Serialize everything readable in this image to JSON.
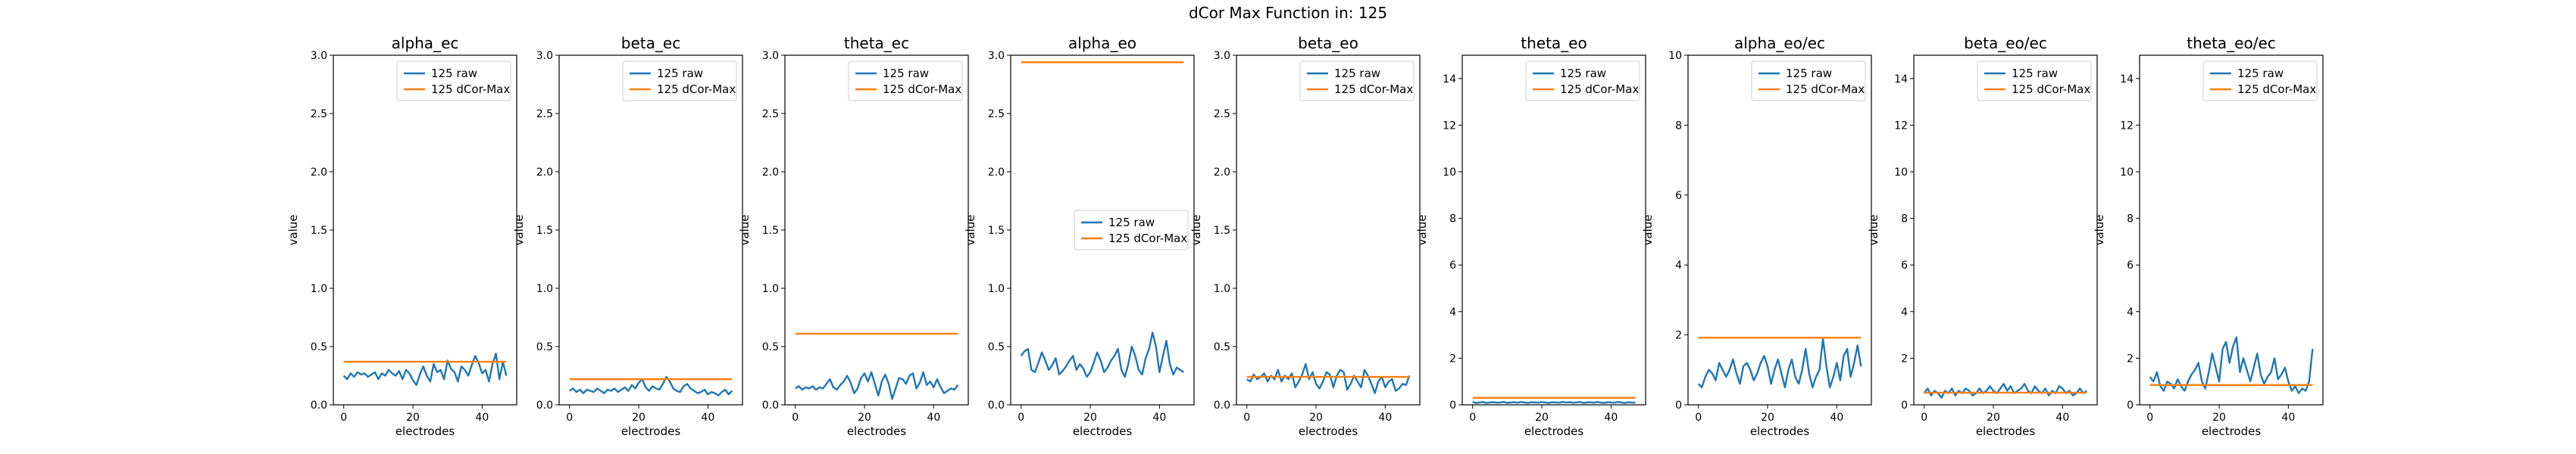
{
  "figure": {
    "suptitle": "dCor Max Function in: 125"
  },
  "chart_data": [
    {
      "type": "line",
      "title": "alpha_ec",
      "xlabel": "electrodes",
      "ylabel": "value",
      "xlim": [
        -3,
        50
      ],
      "ylim": [
        0,
        3.0
      ],
      "xticks": [
        "0",
        "20",
        "40"
      ],
      "xtick_values": [
        0,
        20,
        40
      ],
      "yticks": [
        "0.0",
        "0.5",
        "1.0",
        "1.5",
        "2.0",
        "2.5",
        "3.0"
      ],
      "ytick_values": [
        0,
        0.5,
        1.0,
        1.5,
        2.0,
        2.5,
        3.0
      ],
      "legend": "upper right",
      "series": [
        {
          "name": "125 raw",
          "color": "#1f77b4",
          "x_start": 0,
          "values": [
            0.25,
            0.22,
            0.27,
            0.24,
            0.28,
            0.26,
            0.27,
            0.24,
            0.26,
            0.28,
            0.22,
            0.27,
            0.25,
            0.3,
            0.27,
            0.25,
            0.29,
            0.22,
            0.3,
            0.27,
            0.21,
            0.17,
            0.26,
            0.33,
            0.25,
            0.2,
            0.35,
            0.28,
            0.3,
            0.22,
            0.38,
            0.31,
            0.28,
            0.2,
            0.33,
            0.3,
            0.25,
            0.34,
            0.42,
            0.36,
            0.27,
            0.3,
            0.2,
            0.35,
            0.44,
            0.22,
            0.37,
            0.25
          ]
        },
        {
          "name": "125 dCor-Max",
          "color": "#ff7f0e",
          "x_start": 0,
          "constant": 0.37,
          "length": 48
        }
      ]
    },
    {
      "type": "line",
      "title": "beta_ec",
      "xlabel": "electrodes",
      "ylabel": "value",
      "xlim": [
        -3,
        50
      ],
      "ylim": [
        0,
        3.0
      ],
      "xticks": [
        "0",
        "20",
        "40"
      ],
      "xtick_values": [
        0,
        20,
        40
      ],
      "yticks": [
        "0.0",
        "0.5",
        "1.0",
        "1.5",
        "2.0",
        "2.5",
        "3.0"
      ],
      "ytick_values": [
        0,
        0.5,
        1.0,
        1.5,
        2.0,
        2.5,
        3.0
      ],
      "legend": "upper right",
      "series": [
        {
          "name": "125 raw",
          "color": "#1f77b4",
          "x_start": 0,
          "values": [
            0.12,
            0.14,
            0.11,
            0.13,
            0.1,
            0.13,
            0.12,
            0.11,
            0.14,
            0.12,
            0.1,
            0.13,
            0.12,
            0.14,
            0.11,
            0.13,
            0.15,
            0.12,
            0.17,
            0.14,
            0.19,
            0.22,
            0.15,
            0.12,
            0.16,
            0.14,
            0.13,
            0.18,
            0.24,
            0.2,
            0.14,
            0.12,
            0.11,
            0.16,
            0.18,
            0.14,
            0.12,
            0.1,
            0.11,
            0.13,
            0.09,
            0.11,
            0.1,
            0.08,
            0.11,
            0.13,
            0.09,
            0.12
          ]
        },
        {
          "name": "125 dCor-Max",
          "color": "#ff7f0e",
          "x_start": 0,
          "constant": 0.22,
          "length": 48
        }
      ]
    },
    {
      "type": "line",
      "title": "theta_ec",
      "xlabel": "electrodes",
      "ylabel": "value",
      "xlim": [
        -3,
        50
      ],
      "ylim": [
        0,
        3.0
      ],
      "xticks": [
        "0",
        "20",
        "40"
      ],
      "xtick_values": [
        0,
        20,
        40
      ],
      "yticks": [
        "0.0",
        "0.5",
        "1.0",
        "1.5",
        "2.0",
        "2.5",
        "3.0"
      ],
      "ytick_values": [
        0,
        0.5,
        1.0,
        1.5,
        2.0,
        2.5,
        3.0
      ],
      "legend": "upper right",
      "series": [
        {
          "name": "125 raw",
          "color": "#1f77b4",
          "x_start": 0,
          "values": [
            0.14,
            0.16,
            0.13,
            0.15,
            0.14,
            0.16,
            0.13,
            0.15,
            0.14,
            0.18,
            0.22,
            0.15,
            0.13,
            0.17,
            0.2,
            0.25,
            0.19,
            0.1,
            0.14,
            0.23,
            0.27,
            0.2,
            0.28,
            0.18,
            0.08,
            0.2,
            0.26,
            0.18,
            0.05,
            0.14,
            0.23,
            0.22,
            0.18,
            0.25,
            0.27,
            0.14,
            0.19,
            0.28,
            0.17,
            0.2,
            0.15,
            0.22,
            0.15,
            0.1,
            0.12,
            0.14,
            0.13,
            0.17
          ]
        },
        {
          "name": "125 dCor-Max",
          "color": "#ff7f0e",
          "x_start": 0,
          "constant": 0.61,
          "length": 48
        }
      ]
    },
    {
      "type": "line",
      "title": "alpha_eo",
      "xlabel": "electrodes",
      "ylabel": "value",
      "xlim": [
        -3,
        50
      ],
      "ylim": [
        0,
        3.0
      ],
      "xticks": [
        "0",
        "20",
        "40"
      ],
      "xtick_values": [
        0,
        20,
        40
      ],
      "yticks": [
        "0.0",
        "0.5",
        "1.0",
        "1.5",
        "2.0",
        "2.5",
        "3.0"
      ],
      "ytick_values": [
        0,
        0.5,
        1.0,
        1.5,
        2.0,
        2.5,
        3.0
      ],
      "legend": "center right",
      "series": [
        {
          "name": "125 raw",
          "color": "#1f77b4",
          "x_start": 0,
          "values": [
            0.42,
            0.46,
            0.48,
            0.3,
            0.28,
            0.36,
            0.45,
            0.38,
            0.3,
            0.34,
            0.4,
            0.26,
            0.29,
            0.33,
            0.38,
            0.42,
            0.3,
            0.35,
            0.31,
            0.24,
            0.28,
            0.36,
            0.45,
            0.38,
            0.28,
            0.32,
            0.38,
            0.42,
            0.48,
            0.3,
            0.24,
            0.35,
            0.5,
            0.42,
            0.3,
            0.26,
            0.4,
            0.48,
            0.62,
            0.5,
            0.28,
            0.42,
            0.55,
            0.35,
            0.26,
            0.32,
            0.3,
            0.28
          ]
        },
        {
          "name": "125 dCor-Max",
          "color": "#ff7f0e",
          "x_start": 0,
          "constant": 2.94,
          "length": 48
        }
      ]
    },
    {
      "type": "line",
      "title": "beta_eo",
      "xlabel": "electrodes",
      "ylabel": "value",
      "xlim": [
        -3,
        50
      ],
      "ylim": [
        0,
        3.0
      ],
      "xticks": [
        "0",
        "20",
        "40"
      ],
      "xtick_values": [
        0,
        20,
        40
      ],
      "yticks": [
        "0.0",
        "0.5",
        "1.0",
        "1.5",
        "2.0",
        "2.5",
        "3.0"
      ],
      "ytick_values": [
        0,
        0.5,
        1.0,
        1.5,
        2.0,
        2.5,
        3.0
      ],
      "legend": "upper right",
      "series": [
        {
          "name": "125 raw",
          "color": "#1f77b4",
          "x_start": 0,
          "values": [
            0.22,
            0.2,
            0.26,
            0.22,
            0.24,
            0.27,
            0.2,
            0.25,
            0.22,
            0.3,
            0.2,
            0.25,
            0.22,
            0.27,
            0.15,
            0.2,
            0.26,
            0.35,
            0.22,
            0.28,
            0.18,
            0.14,
            0.2,
            0.28,
            0.26,
            0.15,
            0.25,
            0.3,
            0.28,
            0.13,
            0.18,
            0.25,
            0.2,
            0.15,
            0.3,
            0.25,
            0.18,
            0.1,
            0.2,
            0.24,
            0.15,
            0.2,
            0.22,
            0.12,
            0.14,
            0.18,
            0.17,
            0.25
          ]
        },
        {
          "name": "125 dCor-Max",
          "color": "#ff7f0e",
          "x_start": 0,
          "constant": 0.24,
          "length": 48
        }
      ]
    },
    {
      "type": "line",
      "title": "theta_eo",
      "xlabel": "electrodes",
      "ylabel": "value",
      "xlim": [
        -3,
        50
      ],
      "ylim": [
        0,
        15
      ],
      "xticks": [
        "0",
        "20",
        "40"
      ],
      "xtick_values": [
        0,
        20,
        40
      ],
      "yticks": [
        "0",
        "2",
        "4",
        "6",
        "8",
        "10",
        "12",
        "14"
      ],
      "ytick_values": [
        0,
        2,
        4,
        6,
        8,
        10,
        12,
        14
      ],
      "legend": "upper right",
      "series": [
        {
          "name": "125 raw",
          "color": "#1f77b4",
          "x_start": 0,
          "values": [
            0.12,
            0.08,
            0.1,
            0.12,
            0.08,
            0.1,
            0.11,
            0.09,
            0.1,
            0.12,
            0.08,
            0.1,
            0.11,
            0.09,
            0.12,
            0.1,
            0.08,
            0.11,
            0.1,
            0.09,
            0.12,
            0.1,
            0.08,
            0.11,
            0.1,
            0.09,
            0.12,
            0.1,
            0.11,
            0.09,
            0.1,
            0.12,
            0.08,
            0.1,
            0.11,
            0.09,
            0.12,
            0.1,
            0.08,
            0.11,
            0.1,
            0.09,
            0.12,
            0.1,
            0.08,
            0.11,
            0.1,
            0.09
          ]
        },
        {
          "name": "125 dCor-Max",
          "color": "#ff7f0e",
          "x_start": 0,
          "constant": 0.3,
          "length": 48
        }
      ]
    },
    {
      "type": "line",
      "title": "alpha_eo/ec",
      "xlabel": "electrodes",
      "ylabel": "value",
      "xlim": [
        -3,
        50
      ],
      "ylim": [
        0,
        10
      ],
      "xticks": [
        "0",
        "20",
        "40"
      ],
      "xtick_values": [
        0,
        20,
        40
      ],
      "yticks": [
        "0",
        "2",
        "4",
        "6",
        "8",
        "10"
      ],
      "ytick_values": [
        0,
        2,
        4,
        6,
        8,
        10
      ],
      "legend": "upper right",
      "series": [
        {
          "name": "125 raw",
          "color": "#1f77b4",
          "x_start": 0,
          "values": [
            0.6,
            0.5,
            0.8,
            1.0,
            0.9,
            0.7,
            1.2,
            1.0,
            0.8,
            1.0,
            1.3,
            0.9,
            0.6,
            1.1,
            1.2,
            1.0,
            0.7,
            0.9,
            1.2,
            1.4,
            1.1,
            0.6,
            1.0,
            1.3,
            0.9,
            0.5,
            1.0,
            1.3,
            0.8,
            0.6,
            1.0,
            1.6,
            0.9,
            0.5,
            0.8,
            1.0,
            1.9,
            1.1,
            0.5,
            0.8,
            1.2,
            0.7,
            1.4,
            1.6,
            0.8,
            1.2,
            1.7,
            1.1
          ]
        },
        {
          "name": "125 dCor-Max",
          "color": "#ff7f0e",
          "x_start": 0,
          "constant": 1.92,
          "length": 48
        }
      ]
    },
    {
      "type": "line",
      "title": "beta_eo/ec",
      "xlabel": "electrodes",
      "ylabel": "value",
      "xlim": [
        -3,
        50
      ],
      "ylim": [
        0,
        15
      ],
      "xticks": [
        "0",
        "20",
        "40"
      ],
      "xtick_values": [
        0,
        20,
        40
      ],
      "yticks": [
        "0",
        "2",
        "4",
        "6",
        "8",
        "10",
        "12",
        "14"
      ],
      "ytick_values": [
        0,
        2,
        4,
        6,
        8,
        10,
        12,
        14
      ],
      "legend": "upper right",
      "series": [
        {
          "name": "125 raw",
          "color": "#1f77b4",
          "x_start": 0,
          "values": [
            0.5,
            0.7,
            0.4,
            0.6,
            0.5,
            0.3,
            0.6,
            0.5,
            0.7,
            0.4,
            0.6,
            0.5,
            0.7,
            0.6,
            0.4,
            0.5,
            0.7,
            0.5,
            0.6,
            0.8,
            0.6,
            0.5,
            0.7,
            0.9,
            0.6,
            0.8,
            0.5,
            0.6,
            0.7,
            0.9,
            0.6,
            0.5,
            0.8,
            0.6,
            0.5,
            0.7,
            0.4,
            0.6,
            0.5,
            0.8,
            0.7,
            0.5,
            0.6,
            0.4,
            0.5,
            0.7,
            0.5,
            0.6
          ]
        },
        {
          "name": "125 dCor-Max",
          "color": "#ff7f0e",
          "x_start": 0,
          "constant": 0.52,
          "length": 48
        }
      ]
    },
    {
      "type": "line",
      "title": "theta_eo/ec",
      "xlabel": "electrodes",
      "ylabel": "value",
      "xlim": [
        -3,
        50
      ],
      "ylim": [
        0,
        15
      ],
      "xticks": [
        "0",
        "20",
        "40"
      ],
      "xtick_values": [
        0,
        20,
        40
      ],
      "yticks": [
        "0",
        "2",
        "4",
        "6",
        "8",
        "10",
        "12",
        "14"
      ],
      "ytick_values": [
        0,
        2,
        4,
        6,
        8,
        10,
        12,
        14
      ],
      "legend": "upper right",
      "series": [
        {
          "name": "125 raw",
          "color": "#1f77b4",
          "x_start": 0,
          "values": [
            1.2,
            1.0,
            1.4,
            0.8,
            0.6,
            1.0,
            0.9,
            0.7,
            1.1,
            0.8,
            0.6,
            1.0,
            1.3,
            1.5,
            1.8,
            1.0,
            0.7,
            1.4,
            2.2,
            1.6,
            1.0,
            2.4,
            2.7,
            1.8,
            2.5,
            2.9,
            1.4,
            2.0,
            1.5,
            1.0,
            1.6,
            2.2,
            1.3,
            0.9,
            1.2,
            1.4,
            2.0,
            1.1,
            1.3,
            1.6,
            1.0,
            0.6,
            0.8,
            0.5,
            0.7,
            0.6,
            1.0,
            2.4
          ]
        },
        {
          "name": "125 dCor-Max",
          "color": "#ff7f0e",
          "x_start": 0,
          "constant": 0.85,
          "length": 48
        }
      ]
    }
  ]
}
